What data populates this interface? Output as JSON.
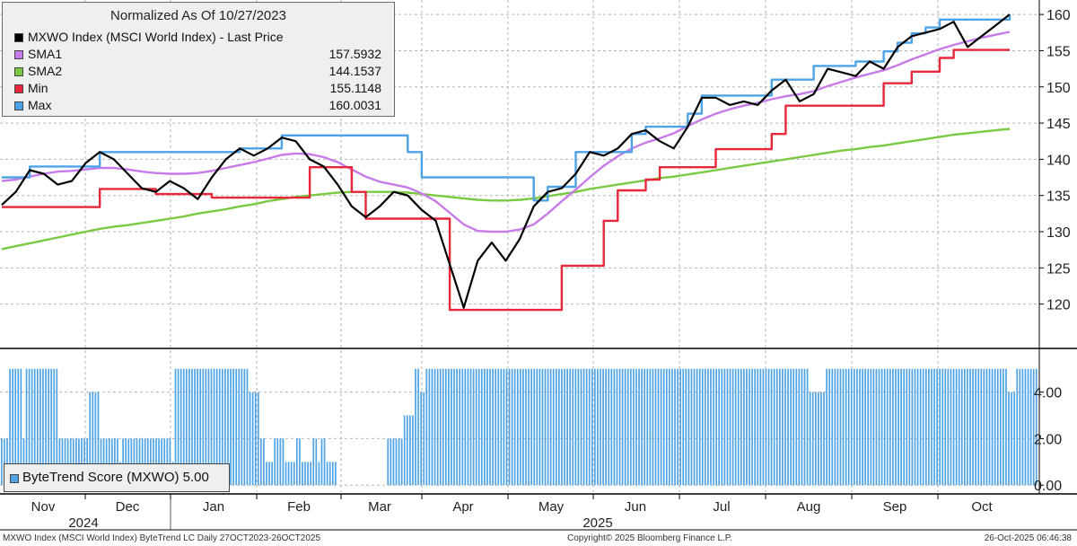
{
  "chart_data": [
    {
      "type": "line",
      "title": "Normalized As Of 10/27/2023",
      "ylim": [
        114,
        162
      ],
      "yticks": [
        120,
        125,
        130,
        135,
        140,
        145,
        150,
        155,
        160
      ],
      "grid": true,
      "legend_position": "top-left",
      "months": [
        "Nov",
        "Dec",
        "Jan",
        "Feb",
        "Mar",
        "Apr",
        "May",
        "Jun",
        "Jul",
        "Aug",
        "Sep",
        "Oct"
      ],
      "years": [
        "2024",
        "2025"
      ],
      "series": [
        {
          "name": "MXWO Index (MSCI World Index) - Last Price",
          "legend_value": "",
          "color": "#000000",
          "values": [
            133.7,
            135.5,
            138.5,
            138.0,
            136.5,
            137.0,
            139.5,
            141.0,
            140.0,
            138.0,
            136.0,
            135.5,
            137.0,
            136.0,
            134.5,
            137.5,
            140.0,
            141.5,
            140.5,
            141.5,
            143.0,
            142.5,
            140.0,
            139.0,
            136.5,
            133.5,
            132.0,
            133.5,
            135.5,
            135.0,
            133.0,
            131.5,
            125.5,
            119.5,
            126.0,
            128.5,
            126.0,
            129.0,
            133.5,
            135.5,
            136.0,
            138.0,
            141.0,
            140.5,
            141.5,
            143.5,
            144.0,
            142.5,
            141.5,
            144.5,
            148.5,
            148.5,
            147.5,
            148.0,
            147.5,
            149.5,
            151.0,
            148.0,
            149.0,
            152.5,
            152.0,
            151.5,
            153.5,
            152.5,
            155.5,
            157.0,
            157.5,
            158.0,
            159.0,
            155.5,
            157.0,
            158.5,
            160.0
          ]
        },
        {
          "name": "SMA1",
          "legend_value": "157.5932",
          "color": "#c77be8",
          "values": [
            137.0,
            137.2,
            137.6,
            138.0,
            138.3,
            138.4,
            138.6,
            138.8,
            138.8,
            138.6,
            138.3,
            138.1,
            138.0,
            138.0,
            138.1,
            138.4,
            138.8,
            139.2,
            139.6,
            140.1,
            140.6,
            140.8,
            140.7,
            140.3,
            139.6,
            138.6,
            137.6,
            136.9,
            136.5,
            136.1,
            135.3,
            134.2,
            132.6,
            131.0,
            130.1,
            130.0,
            130.0,
            130.3,
            131.0,
            132.5,
            134.2,
            135.8,
            137.5,
            139.1,
            140.4,
            141.5,
            142.3,
            142.9,
            143.6,
            144.6,
            145.5,
            146.3,
            146.9,
            147.4,
            147.8,
            148.3,
            148.7,
            149.0,
            149.4,
            150.1,
            150.7,
            151.3,
            151.8,
            152.3,
            153.0,
            153.8,
            154.5,
            155.2,
            155.8,
            156.3,
            156.8,
            157.2,
            157.6
          ]
        },
        {
          "name": "SMA2",
          "legend_value": "144.1537",
          "color": "#7ac943",
          "values": [
            127.6,
            128.0,
            128.4,
            128.8,
            129.2,
            129.6,
            130.0,
            130.4,
            130.7,
            130.9,
            131.2,
            131.5,
            131.8,
            132.1,
            132.5,
            132.8,
            133.1,
            133.5,
            133.8,
            134.2,
            134.5,
            134.8,
            135.0,
            135.2,
            135.4,
            135.5,
            135.5,
            135.5,
            135.5,
            135.4,
            135.2,
            135.0,
            134.8,
            134.6,
            134.4,
            134.3,
            134.3,
            134.4,
            134.6,
            134.9,
            135.2,
            135.5,
            135.9,
            136.2,
            136.5,
            136.8,
            137.1,
            137.4,
            137.6,
            137.9,
            138.2,
            138.5,
            138.8,
            139.1,
            139.4,
            139.7,
            140.0,
            140.3,
            140.6,
            140.9,
            141.2,
            141.4,
            141.7,
            141.9,
            142.2,
            142.5,
            142.8,
            143.1,
            143.4,
            143.6,
            143.8,
            144.0,
            144.2
          ]
        },
        {
          "name": "Min",
          "legend_value": "155.1148",
          "color": "#e8273a",
          "values": [
            133.4,
            133.4,
            133.4,
            133.4,
            133.4,
            133.4,
            133.4,
            135.9,
            135.9,
            135.9,
            135.9,
            135.2,
            135.2,
            135.2,
            135.2,
            134.7,
            134.7,
            134.7,
            134.7,
            134.7,
            134.7,
            134.7,
            138.9,
            138.9,
            138.9,
            135.5,
            131.8,
            131.8,
            131.8,
            131.8,
            131.8,
            131.8,
            119.2,
            119.2,
            119.2,
            119.2,
            119.2,
            119.2,
            119.2,
            119.2,
            125.3,
            125.3,
            125.3,
            131.5,
            135.7,
            135.7,
            137.2,
            138.9,
            138.9,
            138.9,
            138.9,
            141.4,
            141.4,
            141.4,
            141.4,
            143.5,
            147.4,
            147.4,
            147.4,
            147.4,
            147.4,
            147.4,
            147.4,
            150.5,
            150.5,
            152.1,
            152.1,
            154.0,
            155.1,
            155.1,
            155.1,
            155.1,
            155.1
          ]
        },
        {
          "name": "Max",
          "legend_value": "160.0031",
          "color": "#4da3e6",
          "values": [
            137.5,
            137.5,
            139.0,
            139.0,
            139.0,
            139.0,
            139.0,
            141.0,
            141.0,
            141.0,
            141.0,
            141.0,
            141.0,
            141.0,
            141.0,
            141.0,
            141.0,
            141.5,
            141.5,
            141.5,
            143.3,
            143.3,
            143.3,
            143.3,
            143.3,
            143.3,
            143.3,
            143.3,
            143.3,
            141.0,
            137.5,
            137.5,
            137.5,
            137.5,
            137.5,
            137.5,
            137.5,
            137.5,
            134.3,
            136.2,
            136.2,
            141.0,
            141.0,
            141.0,
            141.0,
            143.5,
            144.5,
            144.5,
            144.5,
            146.3,
            148.8,
            148.8,
            148.8,
            148.8,
            148.8,
            151.0,
            151.0,
            151.0,
            152.9,
            152.9,
            152.9,
            153.5,
            153.5,
            154.9,
            156.1,
            157.4,
            158.2,
            159.3,
            159.3,
            159.3,
            159.3,
            159.3,
            160.0
          ]
        }
      ]
    },
    {
      "type": "bar",
      "name": "ByteTrend Score (MXWO)",
      "legend_value": "5.00",
      "color": "#4da3e6",
      "ylim": [
        -0.3,
        5.8
      ],
      "yticks": [
        "0.00",
        "2.00",
        "4.00"
      ],
      "values": [
        2,
        2,
        2,
        5,
        5,
        5,
        5,
        5,
        2,
        5,
        5,
        5,
        5,
        5,
        5,
        5,
        5,
        5,
        5,
        5,
        5,
        2,
        2,
        2,
        2,
        2,
        2,
        2,
        2,
        2,
        2,
        2,
        4,
        4,
        4,
        4,
        2,
        2,
        2,
        2,
        2,
        2,
        2,
        1,
        2,
        2,
        2,
        2,
        2,
        2,
        2,
        2,
        2,
        2,
        2,
        2,
        2,
        2,
        2,
        2,
        2,
        2,
        1,
        5,
        5,
        5,
        5,
        5,
        5,
        5,
        5,
        5,
        5,
        5,
        5,
        5,
        5,
        5,
        5,
        5,
        5,
        5,
        5,
        5,
        5,
        5,
        5,
        5,
        5,
        5,
        4,
        4,
        4,
        4,
        2,
        2,
        1,
        1,
        1,
        2,
        2,
        2,
        2,
        1,
        1,
        1,
        1,
        2,
        2,
        1,
        1,
        1,
        1,
        2,
        2,
        1,
        2,
        2,
        1,
        1,
        1,
        1,
        0,
        0,
        0,
        0,
        0,
        0,
        0,
        0,
        0,
        0,
        0,
        0,
        0,
        0,
        0,
        0,
        0,
        0,
        2,
        2,
        2,
        2,
        2,
        2,
        3,
        3,
        3,
        3,
        5,
        5,
        4,
        4,
        5,
        5,
        5,
        5,
        5,
        5,
        5,
        5,
        5,
        5,
        5,
        5,
        5,
        5,
        5,
        5,
        5,
        5,
        5,
        5,
        5,
        5,
        5,
        5,
        5,
        5,
        5,
        5,
        5,
        5,
        5,
        5,
        5,
        5,
        5,
        5,
        5,
        5,
        5,
        5,
        5,
        5,
        5,
        5,
        5,
        5,
        5,
        5,
        5,
        5,
        5,
        5,
        5,
        5,
        5,
        5,
        5,
        5,
        5,
        5,
        5,
        5,
        5,
        5,
        5,
        5,
        5,
        5,
        5,
        5,
        5,
        5,
        5,
        5,
        5,
        5,
        5,
        5,
        5,
        5,
        5,
        5,
        5,
        5,
        5,
        5,
        5,
        5,
        5,
        5,
        5,
        5,
        5,
        5,
        5,
        5,
        5,
        5,
        5,
        5,
        5,
        5,
        5,
        5,
        5,
        5,
        5,
        5,
        5,
        5,
        5,
        5,
        5,
        5,
        5,
        5,
        5,
        5,
        5,
        5,
        5,
        5,
        5,
        5,
        5,
        5,
        5,
        5,
        5,
        5,
        5,
        5,
        5,
        5,
        5,
        5,
        5,
        5,
        5,
        4,
        4,
        4,
        4,
        4,
        4,
        5,
        5,
        5,
        5,
        5,
        5,
        5,
        5,
        5,
        5,
        5,
        5,
        5,
        5,
        5,
        5,
        5,
        5,
        5,
        5,
        5,
        5,
        5,
        5,
        5,
        5,
        5,
        5,
        5,
        5,
        5,
        5,
        5,
        5,
        5,
        5,
        5,
        5,
        5,
        5,
        5,
        5,
        5,
        5,
        5,
        5,
        5,
        5,
        5,
        5,
        5,
        5,
        5,
        5,
        5,
        5,
        5,
        5,
        5,
        5,
        5,
        5,
        5,
        5,
        5,
        5,
        4,
        4,
        4,
        5,
        5,
        5,
        5,
        5,
        5,
        5,
        5
      ]
    }
  ],
  "footer": {
    "left": "MXWO Index (MSCI World Index) ByteTrend LC Daily 27OCT2023-26OCT2025",
    "center": "Copyright© 2025 Bloomberg Finance L.P.",
    "right": "26-Oct-2025 06:46:38"
  }
}
